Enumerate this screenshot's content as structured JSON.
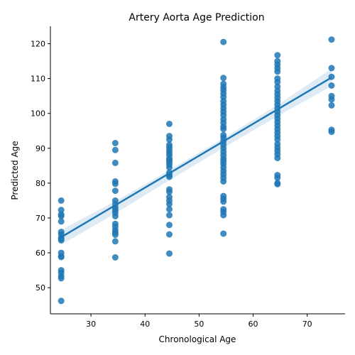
{
  "chart_data": {
    "type": "scatter",
    "title": "Artery Aorta Age Prediction",
    "xlabel": "Chronological Age",
    "ylabel": "Predicted Age",
    "xlim": [
      22.5,
      77
    ],
    "ylim": [
      42.5,
      125
    ],
    "xticks": [
      30,
      40,
      50,
      60,
      70
    ],
    "yticks": [
      50,
      60,
      70,
      80,
      90,
      100,
      110,
      120
    ],
    "grid": false,
    "colors": {
      "points": "#1f77b4",
      "line": "#1f77b4",
      "band": "#1f77b4"
    },
    "points": [
      {
        "x": 24.5,
        "y": 75
      },
      {
        "x": 24.5,
        "y": 72.3
      },
      {
        "x": 24.5,
        "y": 71
      },
      {
        "x": 24.5,
        "y": 70.5
      },
      {
        "x": 24.5,
        "y": 69
      },
      {
        "x": 24.5,
        "y": 66
      },
      {
        "x": 24.5,
        "y": 65.3
      },
      {
        "x": 24.5,
        "y": 64.3
      },
      {
        "x": 24.5,
        "y": 64
      },
      {
        "x": 24.5,
        "y": 63.6
      },
      {
        "x": 24.5,
        "y": 60
      },
      {
        "x": 24.5,
        "y": 59
      },
      {
        "x": 24.5,
        "y": 58.8
      },
      {
        "x": 24.5,
        "y": 55
      },
      {
        "x": 24.5,
        "y": 54.3
      },
      {
        "x": 24.5,
        "y": 53.3
      },
      {
        "x": 24.5,
        "y": 52.7
      },
      {
        "x": 24.5,
        "y": 46.2
      },
      {
        "x": 34.5,
        "y": 91.5
      },
      {
        "x": 34.5,
        "y": 89.5
      },
      {
        "x": 34.5,
        "y": 85.8
      },
      {
        "x": 34.5,
        "y": 80.5
      },
      {
        "x": 34.5,
        "y": 79.8
      },
      {
        "x": 34.5,
        "y": 77.8
      },
      {
        "x": 34.5,
        "y": 75
      },
      {
        "x": 34.5,
        "y": 74
      },
      {
        "x": 34.5,
        "y": 73
      },
      {
        "x": 34.5,
        "y": 72.3
      },
      {
        "x": 34.5,
        "y": 71.5
      },
      {
        "x": 34.5,
        "y": 70.5
      },
      {
        "x": 34.5,
        "y": 68.3
      },
      {
        "x": 34.5,
        "y": 67.5
      },
      {
        "x": 34.5,
        "y": 66.5
      },
      {
        "x": 34.5,
        "y": 65.8
      },
      {
        "x": 34.5,
        "y": 65.2
      },
      {
        "x": 34.5,
        "y": 63.3
      },
      {
        "x": 34.5,
        "y": 58.7
      },
      {
        "x": 44.5,
        "y": 97
      },
      {
        "x": 44.5,
        "y": 93.5
      },
      {
        "x": 44.5,
        "y": 92.5
      },
      {
        "x": 44.5,
        "y": 91
      },
      {
        "x": 44.5,
        "y": 90.3
      },
      {
        "x": 44.5,
        "y": 89.5
      },
      {
        "x": 44.5,
        "y": 88.7
      },
      {
        "x": 44.5,
        "y": 88
      },
      {
        "x": 44.5,
        "y": 87
      },
      {
        "x": 44.5,
        "y": 86.5
      },
      {
        "x": 44.5,
        "y": 86
      },
      {
        "x": 44.5,
        "y": 85.3
      },
      {
        "x": 44.5,
        "y": 84.5
      },
      {
        "x": 44.5,
        "y": 83
      },
      {
        "x": 44.5,
        "y": 82.3
      },
      {
        "x": 44.5,
        "y": 81.8
      },
      {
        "x": 44.5,
        "y": 78.2
      },
      {
        "x": 44.5,
        "y": 77.5
      },
      {
        "x": 44.5,
        "y": 76
      },
      {
        "x": 44.5,
        "y": 75
      },
      {
        "x": 44.5,
        "y": 74
      },
      {
        "x": 44.5,
        "y": 72.5
      },
      {
        "x": 44.5,
        "y": 70.8
      },
      {
        "x": 44.5,
        "y": 68
      },
      {
        "x": 44.5,
        "y": 65.3
      },
      {
        "x": 44.5,
        "y": 59.8
      },
      {
        "x": 54.5,
        "y": 120.5
      },
      {
        "x": 54.5,
        "y": 110.2
      },
      {
        "x": 54.5,
        "y": 108.5
      },
      {
        "x": 54.5,
        "y": 107.5
      },
      {
        "x": 54.5,
        "y": 106.7
      },
      {
        "x": 54.5,
        "y": 105.7
      },
      {
        "x": 54.5,
        "y": 104.7
      },
      {
        "x": 54.5,
        "y": 103.5
      },
      {
        "x": 54.5,
        "y": 102.5
      },
      {
        "x": 54.5,
        "y": 101.5
      },
      {
        "x": 54.5,
        "y": 100.5
      },
      {
        "x": 54.5,
        "y": 99.5
      },
      {
        "x": 54.5,
        "y": 98.3
      },
      {
        "x": 54.5,
        "y": 97.3
      },
      {
        "x": 54.5,
        "y": 96.2
      },
      {
        "x": 54.5,
        "y": 95.5
      },
      {
        "x": 54.5,
        "y": 93.8
      },
      {
        "x": 54.5,
        "y": 93
      },
      {
        "x": 54.5,
        "y": 92
      },
      {
        "x": 54.5,
        "y": 91
      },
      {
        "x": 54.5,
        "y": 90
      },
      {
        "x": 54.5,
        "y": 89
      },
      {
        "x": 54.5,
        "y": 88
      },
      {
        "x": 54.5,
        "y": 87
      },
      {
        "x": 54.5,
        "y": 86.3
      },
      {
        "x": 54.5,
        "y": 85.5
      },
      {
        "x": 54.5,
        "y": 84.5
      },
      {
        "x": 54.5,
        "y": 83.5
      },
      {
        "x": 54.5,
        "y": 82.5
      },
      {
        "x": 54.5,
        "y": 81.5
      },
      {
        "x": 54.5,
        "y": 80.5
      },
      {
        "x": 54.5,
        "y": 76.3
      },
      {
        "x": 54.5,
        "y": 75.5
      },
      {
        "x": 54.5,
        "y": 74.7
      },
      {
        "x": 54.5,
        "y": 72.5
      },
      {
        "x": 54.5,
        "y": 71.8
      },
      {
        "x": 54.5,
        "y": 70.8
      },
      {
        "x": 54.5,
        "y": 65.5
      },
      {
        "x": 64.5,
        "y": 116.7
      },
      {
        "x": 64.5,
        "y": 115
      },
      {
        "x": 64.5,
        "y": 114
      },
      {
        "x": 64.5,
        "y": 113
      },
      {
        "x": 64.5,
        "y": 112
      },
      {
        "x": 64.5,
        "y": 110
      },
      {
        "x": 64.5,
        "y": 109
      },
      {
        "x": 64.5,
        "y": 107.7
      },
      {
        "x": 64.5,
        "y": 106.5
      },
      {
        "x": 64.5,
        "y": 105.5
      },
      {
        "x": 64.5,
        "y": 104.5
      },
      {
        "x": 64.5,
        "y": 103.5
      },
      {
        "x": 64.5,
        "y": 102.5
      },
      {
        "x": 64.5,
        "y": 101.5
      },
      {
        "x": 64.5,
        "y": 100.5
      },
      {
        "x": 64.5,
        "y": 99.5
      },
      {
        "x": 64.5,
        "y": 98.5
      },
      {
        "x": 64.5,
        "y": 97.5
      },
      {
        "x": 64.5,
        "y": 96.5
      },
      {
        "x": 64.5,
        "y": 95.5
      },
      {
        "x": 64.5,
        "y": 94.5
      },
      {
        "x": 64.5,
        "y": 93.5
      },
      {
        "x": 64.5,
        "y": 92.5
      },
      {
        "x": 64.5,
        "y": 91.2
      },
      {
        "x": 64.5,
        "y": 90.2
      },
      {
        "x": 64.5,
        "y": 89.3
      },
      {
        "x": 64.5,
        "y": 88.3
      },
      {
        "x": 64.5,
        "y": 87.2
      },
      {
        "x": 64.5,
        "y": 82.3
      },
      {
        "x": 64.5,
        "y": 81.5
      },
      {
        "x": 64.5,
        "y": 80
      },
      {
        "x": 64.5,
        "y": 79.7
      },
      {
        "x": 74.5,
        "y": 121.2
      },
      {
        "x": 74.5,
        "y": 113
      },
      {
        "x": 74.5,
        "y": 110.5
      },
      {
        "x": 74.5,
        "y": 108
      },
      {
        "x": 74.5,
        "y": 105
      },
      {
        "x": 74.5,
        "y": 104
      },
      {
        "x": 74.5,
        "y": 102.3
      },
      {
        "x": 74.5,
        "y": 95.3
      },
      {
        "x": 74.5,
        "y": 94.7
      }
    ],
    "regression": {
      "x": [
        24.5,
        74.5
      ],
      "y": [
        64.5,
        110.3
      ],
      "ci_x": [
        24.5,
        34.5,
        44.5,
        54.5,
        64.5,
        74.5
      ],
      "ci_upper": [
        66.6,
        74.8,
        83.7,
        92.9,
        102.4,
        112.8
      ],
      "ci_lower": [
        62.3,
        71.3,
        80.8,
        90.1,
        99.2,
        107.8
      ]
    }
  }
}
